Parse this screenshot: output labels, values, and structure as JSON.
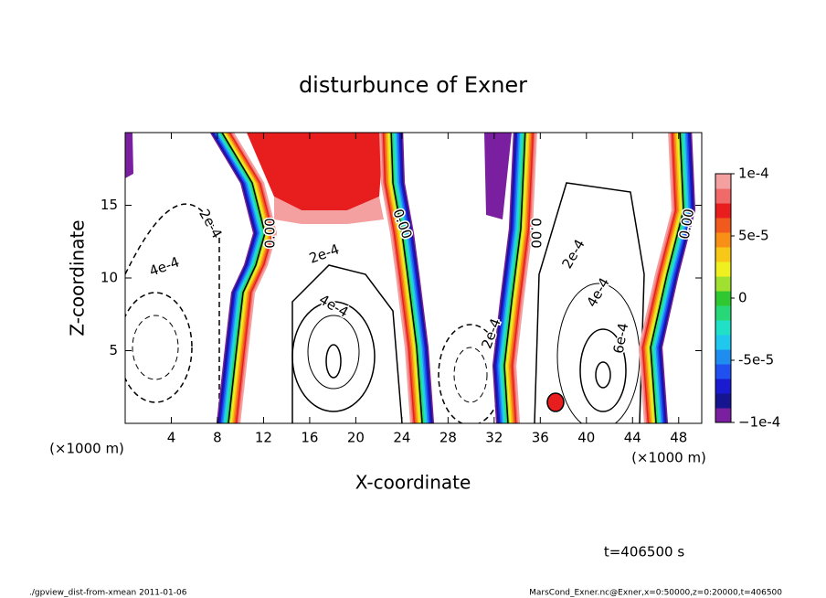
{
  "chart_data": {
    "type": "contour",
    "title": "disturbunce of Exner",
    "xlabel": "X-coordinate",
    "ylabel": "Z-coordinate",
    "x_unit_label": "(×1000 m)",
    "y_unit_label": "(×1000 m)",
    "xlim": [
      0,
      50
    ],
    "ylim": [
      0,
      20
    ],
    "xticks": [
      4,
      8,
      12,
      16,
      20,
      24,
      28,
      32,
      36,
      40,
      44,
      48
    ],
    "yticks": [
      5,
      10,
      15
    ],
    "colorbar": {
      "lim": [
        -0.0001,
        0.0001
      ],
      "ticks": [
        {
          "value": 0.0001,
          "label": "1e-4"
        },
        {
          "value": 5e-05,
          "label": "5e-5"
        },
        {
          "value": 0,
          "label": "0"
        },
        {
          "value": -5e-05,
          "label": "-5e-5"
        },
        {
          "value": -0.0001,
          "label": "−1e-4"
        }
      ],
      "colors": [
        "#7a1fa0",
        "#15158f",
        "#1a1ad0",
        "#2050f0",
        "#1f8cf0",
        "#20c8f0",
        "#20e0c8",
        "#28d878",
        "#30c830",
        "#a0e030",
        "#f0f020",
        "#f8c818",
        "#f89018",
        "#f05a1c",
        "#e81e1e",
        "#f06a6a",
        "#f4a0a0"
      ]
    },
    "contour_labels": [
      {
        "value": 0.0002,
        "label": "2e-4"
      },
      {
        "value": 0.0004,
        "label": "4e-4"
      },
      {
        "value": 0,
        "label": "0.00"
      },
      {
        "value": 0.0002,
        "label": "2e-4"
      },
      {
        "value": 0.0004,
        "label": "4e-4"
      },
      {
        "value": 0,
        "label": "0.00"
      },
      {
        "value": 0,
        "label": "0.00"
      },
      {
        "value": 0.0002,
        "label": "2e-4"
      },
      {
        "value": 0.0004,
        "label": "4e-4"
      },
      {
        "value": 0.0006,
        "label": "6e-4"
      },
      {
        "value": 0,
        "label": "0.00"
      },
      {
        "value": 0.0002,
        "label": "2e-4"
      }
    ],
    "time_label": "t=406500 s"
  },
  "footer": {
    "left": "./gpview_dist-from-xmean  2011-01-06",
    "right": "MarsCond_Exner.nc@Exner,x=0:50000,z=0:20000,t=406500"
  }
}
